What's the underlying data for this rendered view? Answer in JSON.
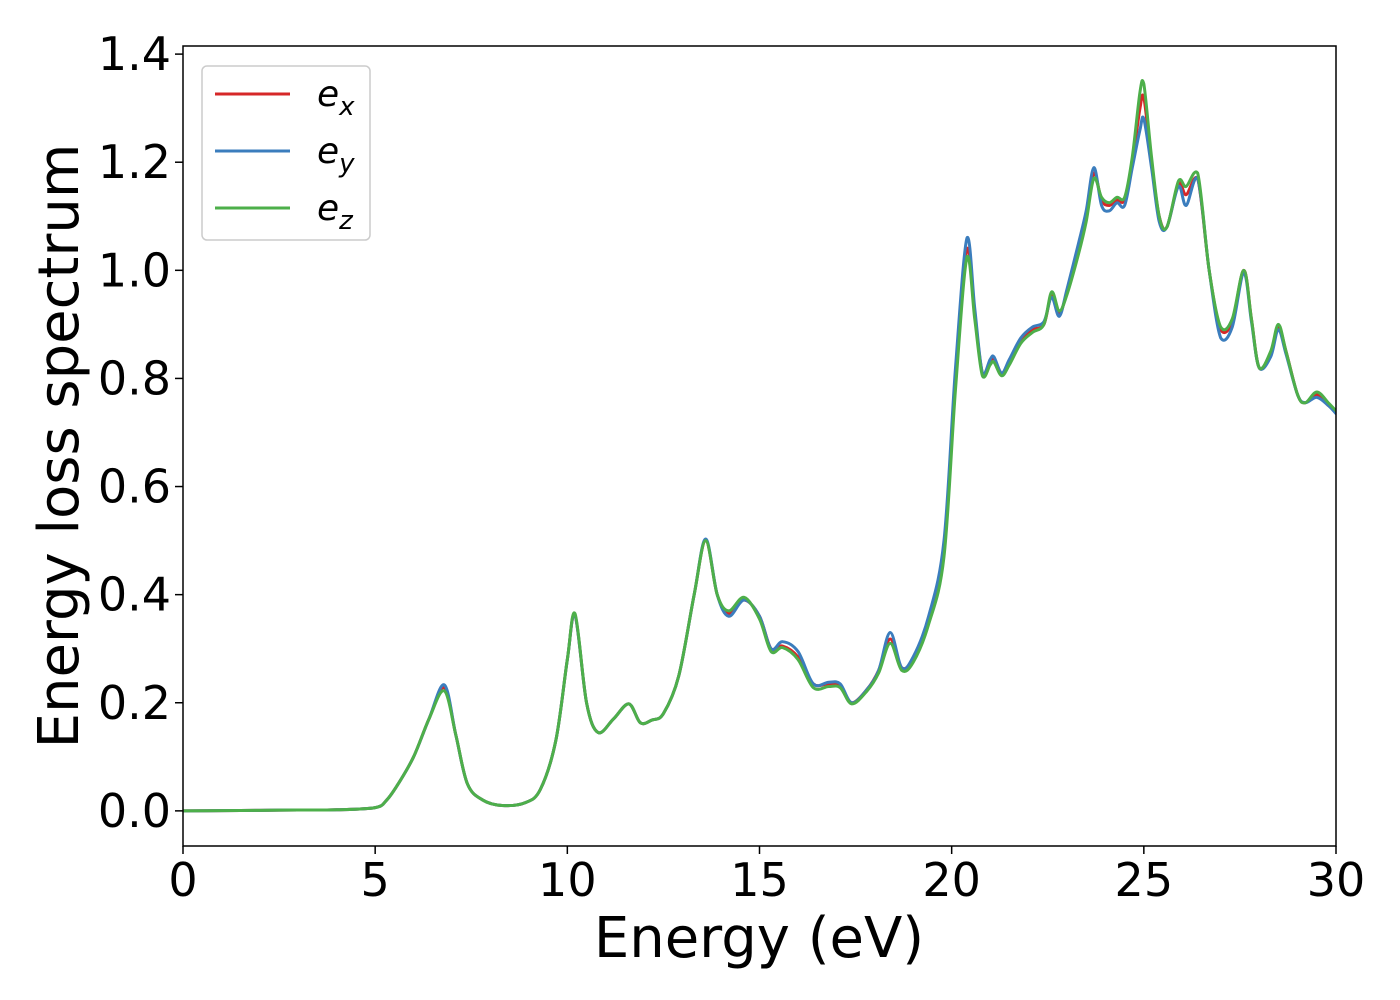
{
  "chart_data": {
    "type": "line",
    "title": "",
    "xlabel": "Energy (eV)",
    "ylabel": "Energy loss spectrum",
    "xlim": [
      0,
      30
    ],
    "ylim": [
      -0.065,
      1.415
    ],
    "xticks": [
      0,
      5,
      10,
      15,
      20,
      25,
      30
    ],
    "xtick_labels": [
      "0",
      "5",
      "10",
      "15",
      "20",
      "25",
      "30"
    ],
    "yticks": [
      0.0,
      0.2,
      0.4,
      0.6,
      0.8,
      1.0,
      1.2,
      1.4
    ],
    "ytick_labels": [
      "0.0",
      "0.2",
      "0.4",
      "0.6",
      "0.8",
      "1.0",
      "1.2",
      "1.4"
    ],
    "grid": false,
    "legend_position": "top-left",
    "x": [
      0,
      1,
      2,
      3,
      4,
      5,
      5.3,
      5.6,
      6.0,
      6.4,
      6.8,
      7.1,
      7.4,
      7.8,
      8.3,
      8.9,
      9.3,
      9.7,
      10.0,
      10.2,
      10.5,
      10.8,
      11.2,
      11.6,
      11.9,
      12.2,
      12.5,
      12.9,
      13.3,
      13.6,
      13.9,
      14.2,
      14.6,
      15.0,
      15.3,
      15.6,
      16.0,
      16.4,
      16.8,
      17.1,
      17.4,
      17.8,
      18.1,
      18.4,
      18.7,
      19.0,
      19.4,
      19.8,
      20.1,
      20.4,
      20.6,
      20.8,
      21.0,
      21.1,
      21.3,
      21.5,
      21.8,
      22.1,
      22.4,
      22.6,
      22.8,
      23.0,
      23.3,
      23.5,
      23.7,
      23.9,
      24.1,
      24.3,
      24.5,
      24.7,
      24.9,
      25.0,
      25.2,
      25.4,
      25.6,
      25.9,
      26.1,
      26.4,
      26.7,
      27.0,
      27.3,
      27.6,
      27.8,
      28.0,
      28.3,
      28.5,
      28.7,
      29.0,
      29.2,
      29.5,
      29.8,
      30.0
    ],
    "series": [
      {
        "name": "e_x",
        "color": "#d62728",
        "values": [
          0.0,
          0.0005,
          0.001,
          0.0015,
          0.002,
          0.006,
          0.02,
          0.05,
          0.1,
          0.17,
          0.228,
          0.14,
          0.05,
          0.02,
          0.01,
          0.015,
          0.04,
          0.13,
          0.28,
          0.362,
          0.2,
          0.145,
          0.17,
          0.198,
          0.163,
          0.168,
          0.18,
          0.25,
          0.4,
          0.5,
          0.4,
          0.365,
          0.39,
          0.36,
          0.3,
          0.305,
          0.285,
          0.235,
          0.235,
          0.23,
          0.2,
          0.225,
          0.26,
          0.318,
          0.265,
          0.28,
          0.35,
          0.48,
          0.8,
          1.04,
          0.92,
          0.81,
          0.83,
          0.837,
          0.81,
          0.83,
          0.87,
          0.89,
          0.9,
          0.955,
          0.92,
          0.96,
          1.04,
          1.1,
          1.18,
          1.13,
          1.12,
          1.13,
          1.13,
          1.2,
          1.3,
          1.32,
          1.2,
          1.1,
          1.08,
          1.16,
          1.14,
          1.17,
          1.0,
          0.89,
          0.905,
          1.0,
          0.91,
          0.82,
          0.845,
          0.895,
          0.85,
          0.77,
          0.755,
          0.77,
          0.75,
          0.74
        ]
      },
      {
        "name": "e_y",
        "color": "#3b7dbd",
        "values": [
          0.0,
          0.0005,
          0.001,
          0.0015,
          0.002,
          0.006,
          0.02,
          0.05,
          0.1,
          0.17,
          0.233,
          0.14,
          0.05,
          0.02,
          0.01,
          0.015,
          0.04,
          0.13,
          0.28,
          0.362,
          0.2,
          0.145,
          0.17,
          0.198,
          0.163,
          0.168,
          0.18,
          0.25,
          0.4,
          0.503,
          0.4,
          0.36,
          0.39,
          0.36,
          0.3,
          0.313,
          0.295,
          0.235,
          0.238,
          0.235,
          0.2,
          0.225,
          0.26,
          0.33,
          0.265,
          0.285,
          0.36,
          0.5,
          0.82,
          1.06,
          0.93,
          0.81,
          0.835,
          0.84,
          0.81,
          0.835,
          0.875,
          0.895,
          0.905,
          0.95,
          0.915,
          0.965,
          1.05,
          1.11,
          1.19,
          1.12,
          1.11,
          1.125,
          1.12,
          1.19,
          1.26,
          1.28,
          1.19,
          1.09,
          1.08,
          1.155,
          1.12,
          1.17,
          1.0,
          0.875,
          0.895,
          0.995,
          0.905,
          0.82,
          0.84,
          0.89,
          0.845,
          0.77,
          0.755,
          0.765,
          0.75,
          0.735
        ]
      },
      {
        "name": "e_z",
        "color": "#4daf4a",
        "values": [
          0.0,
          0.0005,
          0.001,
          0.0015,
          0.002,
          0.006,
          0.02,
          0.05,
          0.1,
          0.17,
          0.222,
          0.14,
          0.05,
          0.02,
          0.01,
          0.015,
          0.04,
          0.13,
          0.28,
          0.365,
          0.2,
          0.145,
          0.17,
          0.198,
          0.163,
          0.168,
          0.18,
          0.25,
          0.4,
          0.5,
          0.4,
          0.37,
          0.395,
          0.355,
          0.295,
          0.302,
          0.28,
          0.228,
          0.23,
          0.228,
          0.198,
          0.222,
          0.255,
          0.31,
          0.26,
          0.275,
          0.345,
          0.47,
          0.78,
          1.025,
          0.91,
          0.805,
          0.825,
          0.83,
          0.805,
          0.825,
          0.865,
          0.885,
          0.9,
          0.96,
          0.925,
          0.955,
          1.03,
          1.09,
          1.17,
          1.135,
          1.125,
          1.135,
          1.135,
          1.21,
          1.33,
          1.345,
          1.21,
          1.1,
          1.08,
          1.165,
          1.155,
          1.18,
          1.0,
          0.895,
          0.91,
          1.0,
          0.91,
          0.82,
          0.85,
          0.9,
          0.85,
          0.77,
          0.755,
          0.775,
          0.755,
          0.74
        ]
      }
    ]
  },
  "legend": {
    "items": [
      {
        "base": "e",
        "sub": "x",
        "color": "#d62728"
      },
      {
        "base": "e",
        "sub": "y",
        "color": "#3b7dbd"
      },
      {
        "base": "e",
        "sub": "z",
        "color": "#4daf4a"
      }
    ]
  }
}
